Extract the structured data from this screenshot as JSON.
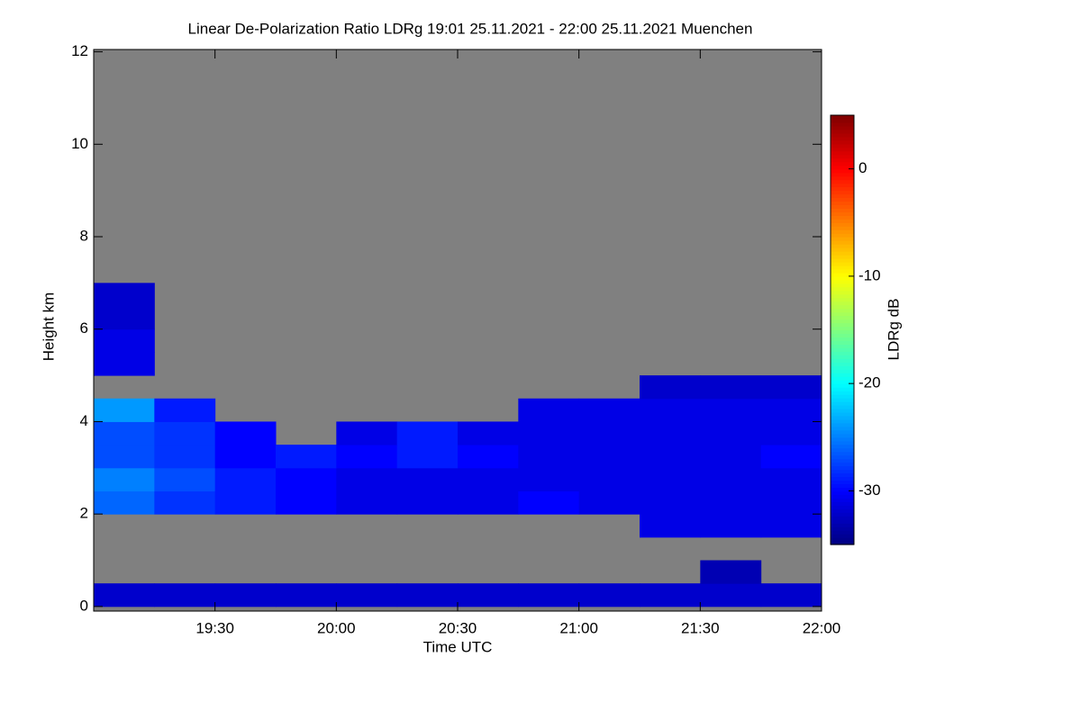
{
  "chart_data": {
    "type": "heatmap",
    "title": "Linear De-Polarization Ratio LDRg   19:01 25.11.2021 - 22:00 25.11.2021 Muenchen",
    "x_label": "Time UTC",
    "y_label": "Height km",
    "colorbar_label": "LDRg dB",
    "colormap": "jet",
    "background": "#808080",
    "xlim": [
      19.0,
      22.0
    ],
    "ylim": [
      -0.1,
      12.05
    ],
    "xticks": [
      {
        "value": 19.5,
        "label": "19:30"
      },
      {
        "value": 20.0,
        "label": "20:00"
      },
      {
        "value": 20.5,
        "label": "20:30"
      },
      {
        "value": 21.0,
        "label": "21:00"
      },
      {
        "value": 21.5,
        "label": "21:30"
      },
      {
        "value": 22.0,
        "label": "22:00"
      }
    ],
    "yticks": [
      0,
      2,
      4,
      6,
      8,
      10,
      12
    ],
    "zlim": [
      -35,
      5
    ],
    "zticks": [
      0,
      -10,
      -20,
      -30
    ],
    "x_bins": [
      19.0,
      19.25,
      19.5,
      19.75,
      20.0,
      20.25,
      20.5,
      20.75,
      21.0,
      21.25,
      21.5,
      21.75,
      22.0
    ],
    "y_bins": [
      0,
      0.5,
      1,
      1.5,
      2,
      2.5,
      3,
      3.5,
      4,
      4.5,
      5,
      5.5,
      6,
      7
    ],
    "z": [
      [
        -32,
        -32,
        -32,
        -32,
        -32,
        -32,
        -32,
        -32,
        -32,
        -32,
        -32,
        -32
      ],
      [
        null,
        null,
        null,
        null,
        null,
        null,
        null,
        null,
        null,
        null,
        -33,
        null
      ],
      [
        null,
        null,
        null,
        null,
        null,
        null,
        null,
        null,
        null,
        null,
        null,
        null
      ],
      [
        null,
        null,
        null,
        null,
        null,
        null,
        null,
        null,
        null,
        -31,
        -31,
        -31
      ],
      [
        -26,
        -28,
        -29,
        -30,
        -31,
        -31,
        -31,
        -30,
        -31,
        -31,
        -31,
        -31
      ],
      [
        -25,
        -27,
        -29,
        -30,
        -31,
        -31,
        -31,
        -31,
        -31,
        -31,
        -31,
        -31
      ],
      [
        -27,
        -28,
        -30,
        -29,
        -30,
        -29,
        -30,
        -31,
        -31,
        -31,
        -31,
        -30
      ],
      [
        -27,
        -28,
        -30,
        null,
        -31,
        -29,
        -31,
        -31,
        -31,
        -31,
        -31,
        -31
      ],
      [
        -24,
        -29,
        null,
        null,
        null,
        null,
        null,
        -31,
        -31,
        -31,
        -31,
        -31
      ],
      [
        null,
        null,
        null,
        null,
        null,
        null,
        null,
        null,
        null,
        -32,
        -32,
        -32
      ],
      [
        -31,
        null,
        null,
        null,
        null,
        null,
        null,
        null,
        null,
        null,
        null,
        null
      ],
      [
        -31,
        null,
        null,
        null,
        null,
        null,
        null,
        null,
        null,
        null,
        null,
        null
      ],
      [
        -32,
        null,
        null,
        null,
        null,
        null,
        null,
        null,
        null,
        null,
        null,
        null
      ]
    ]
  }
}
